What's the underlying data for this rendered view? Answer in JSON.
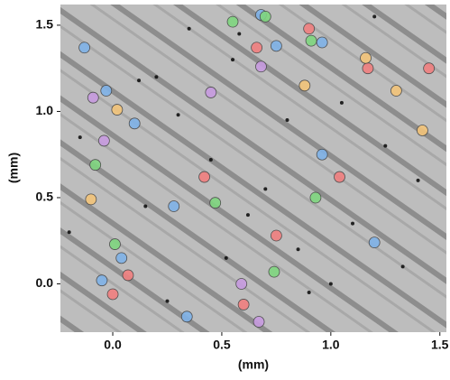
{
  "chart_data": {
    "type": "scatter",
    "x_label": "(mm)",
    "y_label": "(mm)",
    "xlim": [
      -0.24,
      1.53
    ],
    "ylim": [
      -0.28,
      1.62
    ],
    "xticks": [
      {
        "value": 0,
        "label": "0.0"
      },
      0.5,
      {
        "value": 1,
        "label": "1.0"
      },
      1.5
    ],
    "yticks": [
      {
        "value": 0,
        "label": "0.0"
      },
      0.5,
      {
        "value": 1,
        "label": "1.0"
      },
      1.5
    ],
    "series": [
      {
        "color": "#7fb2e8",
        "x": [
          -0.13,
          -0.03,
          0.1,
          0.96,
          1.2,
          0.04,
          -0.05,
          0.28,
          0.68,
          0.75,
          0.96,
          0.34
        ],
        "y": [
          1.37,
          1.12,
          0.93,
          0.75,
          0.24,
          0.15,
          0.02,
          0.45,
          1.56,
          1.38,
          1.4,
          -0.19
        ]
      },
      {
        "color": "#7fd67f",
        "x": [
          -0.08,
          0.47,
          0.93,
          0.7,
          0.91,
          0.55,
          0.74,
          0.01
        ],
        "y": [
          0.69,
          0.47,
          0.5,
          1.55,
          1.41,
          1.52,
          0.07,
          0.23
        ]
      },
      {
        "color": "#f08080",
        "x": [
          1.04,
          0.75,
          0.66,
          1.17,
          0.9,
          0.42,
          0.07,
          0.0,
          0.6,
          1.45
        ],
        "y": [
          0.62,
          0.28,
          1.37,
          1.25,
          1.48,
          0.62,
          0.05,
          -0.06,
          -0.12,
          1.25
        ]
      },
      {
        "color": "#f3c47a",
        "x": [
          0.02,
          -0.1,
          0.88,
          1.3,
          1.16,
          1.42
        ],
        "y": [
          1.01,
          0.49,
          1.15,
          1.12,
          1.31,
          0.89
        ]
      },
      {
        "color": "#c79be0",
        "x": [
          -0.09,
          0.59,
          0.68,
          0.45,
          -0.04,
          0.67
        ],
        "y": [
          1.08,
          0.0,
          1.26,
          1.11,
          0.83,
          -0.22
        ]
      },
      {
        "color": "#111111",
        "x": [
          0.35,
          0.2,
          0.55,
          0.8,
          1.05,
          1.25,
          1.4,
          0.15,
          0.45,
          0.62,
          0.85,
          1.1,
          1.33,
          -0.15,
          0.25,
          0.52,
          0.9,
          1.2,
          0.3,
          0.7,
          1.0,
          -0.2,
          0.12,
          0.58
        ],
        "y": [
          1.48,
          1.2,
          1.3,
          0.95,
          1.05,
          0.8,
          0.6,
          0.45,
          0.72,
          0.4,
          0.2,
          0.35,
          0.1,
          0.85,
          -0.1,
          0.15,
          -0.05,
          1.55,
          0.98,
          0.55,
          0.0,
          0.3,
          1.18,
          1.45
        ]
      }
    ]
  }
}
